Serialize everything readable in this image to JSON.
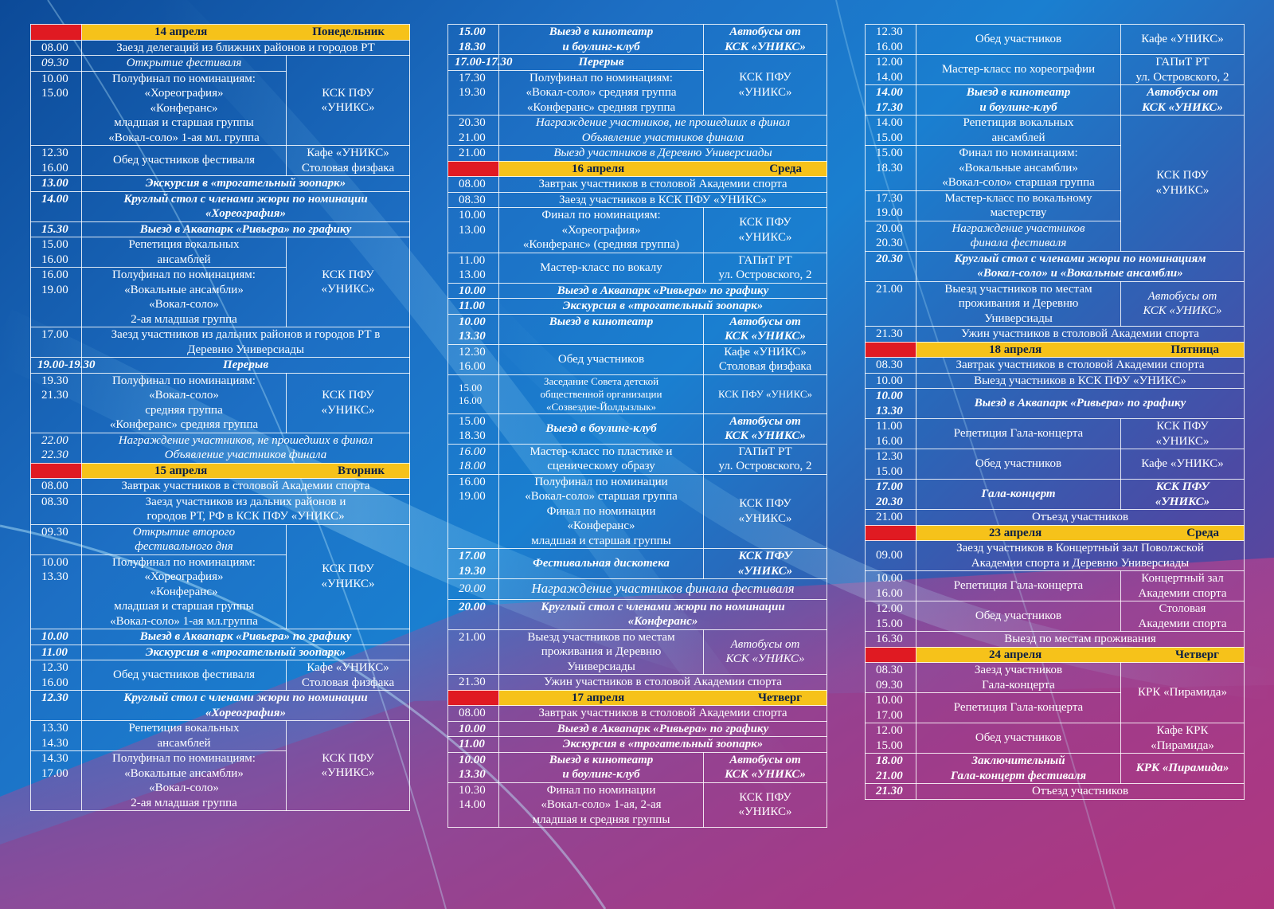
{
  "days": {
    "d14": {
      "date": "14 апреля",
      "weekday": "Понедельник"
    },
    "d15": {
      "date": "15 апреля",
      "weekday": "Вторник"
    },
    "d16": {
      "date": "16 апреля",
      "weekday": "Среда"
    },
    "d17": {
      "date": "17 апреля",
      "weekday": "Четверг"
    },
    "d18": {
      "date": "18 апреля",
      "weekday": "Пятница"
    },
    "d23": {
      "date": "23 апреля",
      "weekday": "Среда"
    },
    "d24": {
      "date": "24 апреля",
      "weekday": "Четверг"
    }
  },
  "places": {
    "ksk": "КСК ПФУ\n«УНИКС»",
    "ksk_inline": "КСК ПФУ «УНИКС»",
    "ksk_bi": "КСК ПФУ\n«УНИКС»",
    "kafe": "Кафе «УНИКС»\nСтоловая физфака",
    "kafe_only": "Кафе «УНИКС»",
    "bus": "Автобусы от\nКСК «УНИКС»",
    "gapit": "ГАПиТ РТ\nул. Островского, 2",
    "concert_hall": "Концертный зал\nАкадемии спорта",
    "stolovaya": "Столовая\nАкадемии спорта",
    "krk": "КРК «Пирамида»",
    "kafe_krk": "Кафе КРК\n«Пирамида»"
  },
  "col0": {
    "r1": {
      "t": "08.00",
      "e": "Заезд делегаций из ближних районов и городов РТ"
    },
    "r2": {
      "t": "09.30",
      "e": "Открытие фестиваля"
    },
    "r3": {
      "t": "10.00\n15.00",
      "e": "Полуфинал по номинациям:\n«Хореография»\n«Конферанс»\nмладшая и старшая группы\n«Вокал-соло» 1-ая мл. группа"
    },
    "r4": {
      "t": "12.30\n16.00",
      "e": "Обед участников фестиваля"
    },
    "r5": {
      "t": "13.00",
      "e": "Экскурсия в «трогательный зоопарк»"
    },
    "r6": {
      "t": "14.00",
      "e": "Круглый стол с членами жюри по номинации\n«Хореография»"
    },
    "r7": {
      "t": "15.30",
      "e": "Выезд в Аквапарк «Ривьера» по графику"
    },
    "r8": {
      "t": "15.00\n16.00",
      "e": "Репетиция вокальных\nансамблей"
    },
    "r9": {
      "t": "16.00\n19.00",
      "e": "Полуфинал по номинациям:\n«Вокальные ансамбли»\n«Вокал-соло»\n2-ая младшая группа"
    },
    "r10": {
      "t": "17.00",
      "e": "Заезд участников из дальних районов и городов РТ в\nДеревню Универсиады"
    },
    "r11": {
      "t": "19.00-19.30",
      "e": "Перерыв"
    },
    "r12": {
      "t": "19.30\n21.30",
      "e": "Полуфинал  по номинациям:\n«Вокал-соло»\nсредняя группа\n«Конферанс» средняя группа"
    },
    "r13": {
      "t": "22.00\n22.30",
      "e": "Награждение участников, не прошедших в финал\nОбъявление участников финала"
    },
    "r14": {
      "t": "08.00",
      "e": "Завтрак участников в столовой Академии спорта"
    },
    "r15": {
      "t": "08.30",
      "e": "Заезд участников из дальних районов и\nгородов РТ, РФ  в КСК ПФУ «УНИКС»"
    },
    "r16": {
      "t": "09.30",
      "e": "Открытие второго\nфестивального дня"
    },
    "r17": {
      "t": "10.00\n13.30",
      "e": "Полуфинал по номинациям:\n«Хореография»\n«Конферанс»\nмладшая и старшая группы\n«Вокал-соло» 1-ая мл.группа"
    },
    "r18": {
      "t": "10.00",
      "e": "Выезд в Аквапарк «Ривьера» по графику"
    },
    "r19": {
      "t": "11.00",
      "e": "Экскурсия в «трогательный зоопарк»"
    },
    "r20": {
      "t": "12.30\n16.00",
      "e": "Обед участников фестиваля"
    },
    "r21": {
      "t": "12.30",
      "e": "Круглый стол с членами жюри по номинации\n«Хореография»"
    },
    "r22": {
      "t": "13.30\n14.30",
      "e": "Репетиция вокальных\nансамблей"
    },
    "r23": {
      "t": "14.30\n17.00",
      "e": "Полуфинал по номинациям:\n«Вокальные ансамбли»\n«Вокал-соло»\n2-ая младшая группа"
    }
  },
  "col1": {
    "r1": {
      "t": "15.00\n18.30",
      "e": "Выезд в кинотеатр\nи боулинг-клуб"
    },
    "r2": {
      "t": "17.00-17.30",
      "e": "Перерыв"
    },
    "r3": {
      "t": "17.30\n19.30",
      "e": "Полуфинал по номинациям:\n«Вокал-соло» средняя группа\n«Конферанс» средняя группа"
    },
    "r4": {
      "t": "20.30\n21.00",
      "e": "Награждение участников, не прошедших в финал\nОбъявление участников финала"
    },
    "r5": {
      "t": "21.00",
      "e": "Выезд участников в Деревню Универсиады"
    },
    "r6": {
      "t": "08.00",
      "e": "Завтрак участников в столовой Академии спорта"
    },
    "r7": {
      "t": "08.30",
      "e": "Заезд участников в КСК ПФУ «УНИКС»"
    },
    "r8": {
      "t": "10.00\n13.00",
      "e": "Финал по номинациям:\n«Хореография»\n«Конферанс» (средняя группа)"
    },
    "r9": {
      "t": "11.00\n13.00",
      "e": "Мастер-класс по вокалу"
    },
    "r10": {
      "t": "10.00",
      "e": "Выезд в Аквапарк «Ривьера» по графику"
    },
    "r11": {
      "t": "11.00",
      "e": "Экскурсия в «трогательный зоопарк»"
    },
    "r12": {
      "t": "10.00\n13.30",
      "e": "Выезд в кинотеатр"
    },
    "r13": {
      "t": "12.30\n16.00",
      "e": "Обед участников"
    },
    "r14": {
      "t": "15.00\n16.00",
      "e": "Заседание Совета детской\nобщественной организации\n«Созвездие-Йолдызлык»"
    },
    "r15": {
      "t": "15.00\n18.30",
      "e": "Выезд в боулинг-клуб"
    },
    "r16": {
      "t": "16.00\n18.00",
      "e": "Мастер-класс по пластике и\nсценическому образу"
    },
    "r17": {
      "t": "16.00\n19.00",
      "e": "Полуфинал по номинации\n«Вокал-соло» старшая группа\nФинал по номинации\n«Конферанс»\nмладшая и старшая группы"
    },
    "r18": {
      "t": "17.00\n19.30",
      "e": "Фестивальная дискотека"
    },
    "r19": {
      "t": "20.00",
      "e": "Награждение участников финала фестиваля"
    },
    "r20": {
      "t": "20.00",
      "e": "Круглый стол с членами жюри по номинации\n«Конферанс»"
    },
    "r21": {
      "t": "21.00",
      "e": "Выезд участников по местам\nпроживания и  Деревню\nУниверсиады"
    },
    "r22": {
      "t": "21.30",
      "e": "Ужин участников в столовой Академии спорта"
    },
    "r23": {
      "t": "08.00",
      "e": "Завтрак участников в столовой Академии спорта"
    },
    "r24": {
      "t": "10.00",
      "e": "Выезд в Аквапарк «Ривьера» по графику"
    },
    "r25": {
      "t": "11.00",
      "e": "Экскурсия в «трогательный зоопарк»"
    },
    "r26": {
      "t": "10.00\n13.30",
      "e": "Выезд в кинотеатр\nи боулинг-клуб"
    },
    "r27": {
      "t": "10.30\n14.00",
      "e": "Финал по номинации\n«Вокал-соло» 1-ая, 2-ая\nмладшая и средняя группы"
    }
  },
  "col2": {
    "r1": {
      "t": "12.30\n16.00",
      "e": "Обед участников"
    },
    "r2": {
      "t": "12.00\n14.00",
      "e": "Мастер-класс по хореографии"
    },
    "r3": {
      "t": "14.00\n17.30",
      "e": "Выезд в кинотеатр\nи боулинг-клуб"
    },
    "r4": {
      "t": "14.00\n15.00",
      "e": "Репетиция вокальных\nансамблей"
    },
    "r5": {
      "t": "15.00\n18.30",
      "e": "Финал по номинациям:\n«Вокальные ансамбли»\n«Вокал-соло» старшая группа"
    },
    "r6": {
      "t": "17.30\n19.00",
      "e": "Мастер-класс по вокальному\nмастерству"
    },
    "r7": {
      "t": "20.00\n20.30",
      "e": "Награждение участников\nфинала фестиваля"
    },
    "r8": {
      "t": "20.30",
      "e": "Круглый стол с членами жюри по номинациям\n«Вокал-соло» и «Вокальные ансамбли»"
    },
    "r9": {
      "t": "21.00",
      "e": "Выезд участников по местам\nпроживания и  Деревню\nУниверсиады"
    },
    "r10": {
      "t": "21.30",
      "e": "Ужин участников в столовой Академии спорта"
    },
    "r11": {
      "t": "08.30",
      "e": "Завтрак участников в столовой Академии спорта"
    },
    "r12": {
      "t": "10.00",
      "e": "Выезд участников в КСК ПФУ «УНИКС»"
    },
    "r13": {
      "t": "10.00\n13.30",
      "e": "Выезд в Аквапарк «Ривьера» по графику"
    },
    "r14": {
      "t": "11.00\n16.00",
      "e": "Репетиция Гала-концерта"
    },
    "r15": {
      "t": "12.30\n15.00",
      "e": "Обед участников"
    },
    "r16": {
      "t": "17.00\n20.30",
      "e": "Гала-концерт"
    },
    "r17": {
      "t": "21.00",
      "e": "Отъезд участников"
    },
    "r18": {
      "t": "09.00",
      "e": "Заезд участников в Концертный зал Поволжской\nАкадемии спорта и Деревню Универсиады"
    },
    "r19": {
      "t": "10.00\n16.00",
      "e": "Репетиция Гала-концерта"
    },
    "r20": {
      "t": "12.00\n15.00",
      "e": "Обед участников"
    },
    "r21": {
      "t": "16.30",
      "e": "Выезд по местам проживания"
    },
    "r22": {
      "t": "08.30\n09.30",
      "e": "Заезд участников\nГала-концерта"
    },
    "r23": {
      "t": "10.00\n17.00",
      "e": "Репетиция Гала-концерта"
    },
    "r24": {
      "t": "12.00\n15.00",
      "e": "Обед участников"
    },
    "r25": {
      "t": "18.00\n21.00",
      "e": "Заключительный\nГала-концерт фестиваля"
    },
    "r26": {
      "t": "21.30",
      "e": "Отъезд участников"
    }
  }
}
